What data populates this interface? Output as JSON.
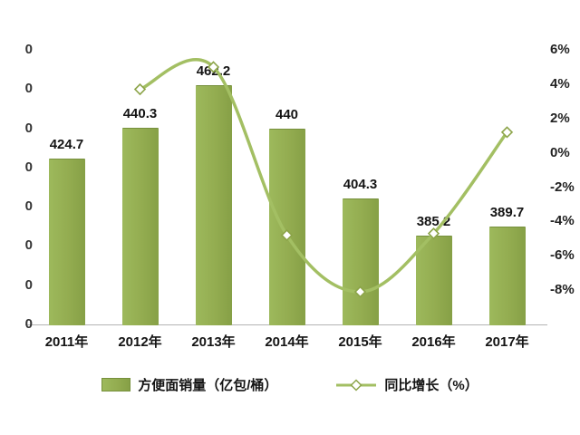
{
  "chart_data": {
    "type": "bar+line",
    "categories": [
      "2011年",
      "2012年",
      "2013年",
      "2014年",
      "2015年",
      "2016年",
      "2017年"
    ],
    "series": [
      {
        "name": "方便面销量（亿包/桶）",
        "type": "bar",
        "axis": "left",
        "values": [
          424.7,
          440.3,
          462.2,
          440,
          404.3,
          385.2,
          389.7
        ],
        "value_labels": [
          "424.7",
          "440.3",
          "462.2",
          "440",
          "404.3",
          "385.2",
          "389.7"
        ]
      },
      {
        "name": "同比增长（%）",
        "type": "line",
        "axis": "right",
        "values": [
          null,
          3.7,
          5.0,
          -4.8,
          -8.1,
          -4.7,
          1.2
        ]
      }
    ],
    "left_axis": {
      "min": 340,
      "max": 480,
      "step": 20,
      "labels_clipped": true,
      "visible_fragment": "0"
    },
    "right_axis": {
      "min": -10,
      "max": 6,
      "step": 2,
      "tick_labels": [
        "6%",
        "4%",
        "2%",
        "0%",
        "-2%",
        "-4%",
        "-6%",
        "-8%"
      ]
    },
    "grid": false,
    "legend_position": "bottom"
  },
  "legend": {
    "bar_label": "方便面销量（亿包/桶）",
    "line_label": "同比增长（%）"
  },
  "colors": {
    "bar": "#93ac50",
    "bar_light": "#9db95c",
    "bar_dark": "#86a046",
    "bar_border": "#76903c",
    "line": "#a3bf63",
    "marker_fill": "#ffffff",
    "marker_stroke": "#8ca449",
    "axis_line": "#b3b3b3",
    "text": "#141414"
  }
}
